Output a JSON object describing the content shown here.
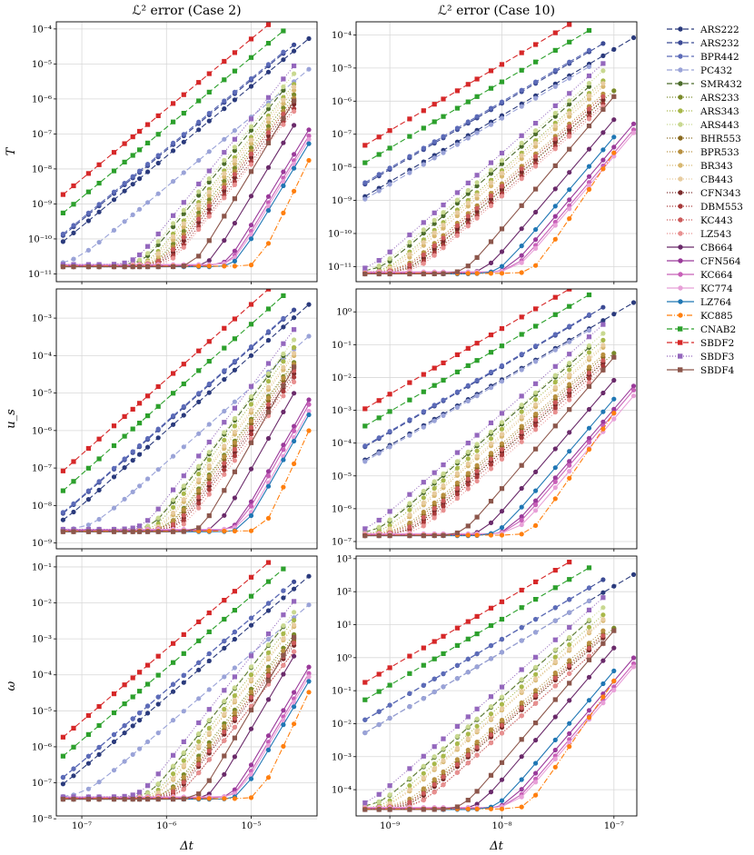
{
  "figure": {
    "col_titles": [
      "ℒ² error (Case 2)",
      "ℒ² error (Case 10)"
    ],
    "row_labels": [
      "T",
      "u_s",
      "ω"
    ],
    "xlabel": "Δt"
  },
  "chart_data": {
    "type": "line",
    "xscale": "log",
    "yscale": "log",
    "grid": true,
    "legend_placement": "right",
    "columns": [
      {
        "title": "ℒ² error (Case 2)",
        "xlim": [
          5e-08,
          6e-05
        ],
        "x_ticks": [
          {
            "v": 1e-07,
            "label": "10⁻⁷"
          },
          {
            "v": 1e-06,
            "label": "10⁻⁶"
          },
          {
            "v": 1e-05,
            "label": "10⁻⁵"
          }
        ],
        "x": [
          6e-08,
          8e-08,
          1.2e-07,
          1.6e-07,
          2.4e-07,
          3.2e-07,
          4e-07,
          4.8e-07,
          6e-07,
          8e-07,
          1.2e-06,
          1.6e-06,
          2.4e-06,
          3.2e-06,
          4.8e-06,
          6.4e-06,
          1e-05,
          1.6e-05,
          2.4e-05,
          3.2e-05,
          4.8e-05
        ]
      },
      {
        "title": "ℒ² error (Case 10)",
        "xlim": [
          5e-10,
          1.6e-07
        ],
        "x_ticks": [
          {
            "v": 1e-09,
            "label": "10⁻⁹"
          },
          {
            "v": 1e-08,
            "label": "10⁻⁸"
          },
          {
            "v": 1e-07,
            "label": "10⁻⁷"
          }
        ],
        "x": [
          6e-10,
          8e-10,
          1e-09,
          1.5e-09,
          2e-09,
          2.5e-09,
          3e-09,
          4e-09,
          5e-09,
          6e-09,
          8e-09,
          1e-08,
          1.5e-08,
          2e-08,
          3e-08,
          4e-08,
          6e-08,
          8e-08,
          1e-07,
          1.5e-07
        ]
      }
    ],
    "rows": [
      {
        "ylabel": "T",
        "panels": [
          {
            "ylim": [
              6e-12,
              0.00016
            ],
            "y_ticks": [
              {
                "v": 1e-11,
                "label": "10⁻¹¹"
              },
              {
                "v": 1e-10,
                "label": "10⁻¹⁰"
              },
              {
                "v": 1e-09,
                "label": "10⁻⁹"
              },
              {
                "v": 1e-08,
                "label": "10⁻⁸"
              },
              {
                "v": 1e-07,
                "label": "10⁻⁷"
              },
              {
                "v": 1e-06,
                "label": "10⁻⁶"
              },
              {
                "v": 1e-05,
                "label": "10⁻⁵"
              },
              {
                "v": 0.0001,
                "label": "10⁻⁴"
              }
            ],
            "floor": 1.6e-11
          },
          {
            "ylim": [
              3.5e-12,
              0.00025
            ],
            "y_ticks": [
              {
                "v": 1e-11,
                "label": "10⁻¹¹"
              },
              {
                "v": 1e-10,
                "label": "10⁻¹⁰"
              },
              {
                "v": 1e-09,
                "label": "10⁻⁹"
              },
              {
                "v": 1e-08,
                "label": "10⁻⁸"
              },
              {
                "v": 1e-07,
                "label": "10⁻⁷"
              },
              {
                "v": 1e-06,
                "label": "10⁻⁶"
              },
              {
                "v": 1e-05,
                "label": "10⁻⁵"
              },
              {
                "v": 0.0001,
                "label": "10⁻⁴"
              }
            ],
            "floor": 6e-12
          }
        ]
      },
      {
        "ylabel": "u_s",
        "panels": [
          {
            "ylim": [
              7e-10,
              0.006
            ],
            "y_ticks": [
              {
                "v": 1e-09,
                "label": "10⁻⁹"
              },
              {
                "v": 1e-08,
                "label": "10⁻⁸"
              },
              {
                "v": 1e-07,
                "label": "10⁻⁷"
              },
              {
                "v": 1e-06,
                "label": "10⁻⁶"
              },
              {
                "v": 1e-05,
                "label": "10⁻⁵"
              },
              {
                "v": 0.0001,
                "label": "10⁻⁴"
              },
              {
                "v": 0.001,
                "label": "10⁻³"
              }
            ],
            "floor": 2e-09
          },
          {
            "ylim": [
              6e-08,
              5
            ],
            "y_ticks": [
              {
                "v": 1e-07,
                "label": "10⁻⁷"
              },
              {
                "v": 1e-06,
                "label": "10⁻⁶"
              },
              {
                "v": 1e-05,
                "label": "10⁻⁵"
              },
              {
                "v": 0.0001,
                "label": "10⁻⁴"
              },
              {
                "v": 0.001,
                "label": "10⁻³"
              },
              {
                "v": 0.01,
                "label": "10⁻²"
              },
              {
                "v": 0.1,
                "label": "10⁻¹"
              },
              {
                "v": 1,
                "label": "10⁰"
              }
            ],
            "floor": 1.5e-07
          }
        ]
      },
      {
        "ylabel": "ω",
        "panels": [
          {
            "ylim": [
              1.2e-08,
              0.2
            ],
            "y_ticks": [
              {
                "v": 1e-08,
                "label": "10⁻⁸"
              },
              {
                "v": 1e-07,
                "label": "10⁻⁷"
              },
              {
                "v": 1e-06,
                "label": "10⁻⁶"
              },
              {
                "v": 1e-05,
                "label": "10⁻⁵"
              },
              {
                "v": 0.0001,
                "label": "10⁻⁴"
              },
              {
                "v": 0.001,
                "label": "10⁻³"
              },
              {
                "v": 0.01,
                "label": "10⁻²"
              },
              {
                "v": 0.1,
                "label": "10⁻¹"
              }
            ],
            "floor": 3.5e-08
          },
          {
            "ylim": [
              1.6e-05,
              1200
            ],
            "y_ticks": [
              {
                "v": 0.0001,
                "label": "10⁻⁴"
              },
              {
                "v": 0.001,
                "label": "10⁻³"
              },
              {
                "v": 0.01,
                "label": "10⁻²"
              },
              {
                "v": 0.1,
                "label": "10⁻¹"
              },
              {
                "v": 1,
                "label": "10⁰"
              },
              {
                "v": 10,
                "label": "10¹"
              },
              {
                "v": 100,
                "label": "10²"
              },
              {
                "v": 1000,
                "label": "10³"
              }
            ],
            "floor": 2.5e-05
          }
        ]
      }
    ],
    "series": [
      {
        "name": "ARS222",
        "color": "#2a3a7c",
        "dash": "6,3",
        "marker": "circle",
        "order": 2,
        "offset": [
          0.6,
          0.7,
          0.5
        ],
        "n": [
          21,
          20
        ]
      },
      {
        "name": "ARS232",
        "color": "#3b4a94",
        "dash": "6,3",
        "marker": "circle",
        "order": 2,
        "offset": [
          0.4,
          0.5,
          0.35
        ],
        "n": [
          20,
          18
        ]
      },
      {
        "name": "BPR442",
        "color": "#5c6bb8",
        "dash": "6,3",
        "marker": "circle",
        "order": 2,
        "offset": [
          0.25,
          0.3,
          0.2
        ],
        "n": [
          19,
          17
        ]
      },
      {
        "name": "PC432",
        "color": "#9aa3d8",
        "dash": "6,3",
        "marker": "circle",
        "order": 2,
        "offset": [
          0.08,
          0.1,
          0.08
        ],
        "n": [
          21,
          17
        ]
      },
      {
        "name": "SMR432",
        "color": "#4a6b2a",
        "dash": "6,3",
        "marker": "circle",
        "order": 3,
        "offset": [
          0.02,
          0.03,
          0.02
        ],
        "n": [
          19,
          17
        ]
      },
      {
        "name": "ARS233",
        "color": "#7a8a2a",
        "dash": "1,2",
        "marker": "circle",
        "order": 3,
        "offset": [
          0.015,
          0.02,
          0.012
        ],
        "n": [
          20,
          19
        ]
      },
      {
        "name": "ARS343",
        "color": "#a8b84a",
        "dash": "1,2",
        "marker": "circle",
        "order": 3,
        "offset": [
          0.03,
          0.05,
          0.03
        ],
        "n": [
          20,
          18
        ]
      },
      {
        "name": "ARS443",
        "color": "#c8d890",
        "dash": "1,2",
        "marker": "circle",
        "order": 3,
        "offset": [
          0.06,
          0.08,
          0.05
        ],
        "n": [
          20,
          18
        ]
      },
      {
        "name": "BHR553",
        "color": "#8a6a20",
        "dash": "1,2",
        "marker": "circle",
        "order": 3,
        "offset": [
          0.01,
          0.015,
          0.008
        ],
        "n": [
          20,
          18
        ]
      },
      {
        "name": "BPR533",
        "color": "#b89040",
        "dash": "1,2",
        "marker": "circle",
        "order": 3,
        "offset": [
          0.012,
          0.018,
          0.01
        ],
        "n": [
          20,
          18
        ]
      },
      {
        "name": "BR343",
        "color": "#d8b870",
        "dash": "1,2",
        "marker": "circle",
        "order": 3,
        "offset": [
          0.02,
          0.03,
          0.02
        ],
        "n": [
          20,
          18
        ]
      },
      {
        "name": "CB443",
        "color": "#e8cca0",
        "dash": "1,2",
        "marker": "circle",
        "order": 3,
        "offset": [
          0.025,
          0.035,
          0.022
        ],
        "n": [
          20,
          18
        ]
      },
      {
        "name": "CFN343",
        "color": "#7a2a2a",
        "dash": "1,2",
        "marker": "circle",
        "order": 3,
        "offset": [
          0.008,
          0.01,
          0.006
        ],
        "n": [
          20,
          18
        ]
      },
      {
        "name": "DBM553",
        "color": "#a83a3a",
        "dash": "1,2",
        "marker": "circle",
        "order": 3,
        "offset": [
          0.006,
          0.008,
          0.004
        ],
        "n": [
          20,
          18
        ]
      },
      {
        "name": "KC443",
        "color": "#cc5a5a",
        "dash": "1,2",
        "marker": "circle",
        "order": 3,
        "offset": [
          0.01,
          0.012,
          0.007
        ],
        "n": [
          20,
          18
        ]
      },
      {
        "name": "LZ543",
        "color": "#e89090",
        "dash": "1,2",
        "marker": "circle",
        "order": 3,
        "offset": [
          0.005,
          0.006,
          0.004
        ],
        "n": [
          20,
          18
        ]
      },
      {
        "name": "CB664",
        "color": "#6a2a6a",
        "dash": "",
        "marker": "circle",
        "order": 4,
        "offset": [
          0.002,
          0.003,
          0.003
        ],
        "n": [
          20,
          19
        ]
      },
      {
        "name": "CFN564",
        "color": "#9a3a9a",
        "dash": "",
        "marker": "circle",
        "order": 4,
        "offset": [
          0.0015,
          0.002,
          0.0015
        ],
        "n": [
          21,
          20
        ]
      },
      {
        "name": "KC664",
        "color": "#c860b8",
        "dash": "",
        "marker": "circle",
        "order": 4,
        "offset": [
          0.001,
          0.0015,
          0.001
        ],
        "n": [
          21,
          20
        ]
      },
      {
        "name": "KC774",
        "color": "#e8a0d8",
        "dash": "",
        "marker": "circle",
        "order": 4,
        "offset": [
          0.0008,
          0.001,
          0.0008
        ],
        "n": [
          21,
          20
        ]
      },
      {
        "name": "LZ764",
        "color": "#1f77b4",
        "dash": "",
        "marker": "circle",
        "order": 4,
        "offset": [
          0.0006,
          0.0008,
          0.0006
        ],
        "n": [
          21,
          19
        ]
      },
      {
        "name": "KC885",
        "color": "#ff7f0e",
        "dash": "6,2,1,2",
        "marker": "circle",
        "order": 5,
        "offset": [
          0.0002,
          0.0003,
          0.0003
        ],
        "n": [
          21,
          19
        ]
      },
      {
        "name": "CNAB2",
        "color": "#2ca02c",
        "dash": "6,3",
        "marker": "square",
        "order": 2,
        "offset": [
          1.0,
          1.2,
          0.8
        ],
        "n": [
          19,
          17
        ]
      },
      {
        "name": "SBDF2",
        "color": "#d62728",
        "dash": "6,3",
        "marker": "square",
        "order": 2,
        "offset": [
          1.5,
          1.8,
          1.2
        ],
        "n": [
          18,
          16
        ]
      },
      {
        "name": "SBDF3",
        "color": "#9467bd",
        "dash": "1,2",
        "marker": "square",
        "order": 3,
        "offset": [
          0.1,
          0.15,
          0.1
        ],
        "n": [
          20,
          18
        ]
      },
      {
        "name": "SBDF4",
        "color": "#8c564b",
        "dash": "",
        "marker": "square",
        "order": 4,
        "offset": [
          0.01,
          0.015,
          0.01
        ],
        "n": [
          20,
          19
        ]
      }
    ]
  }
}
